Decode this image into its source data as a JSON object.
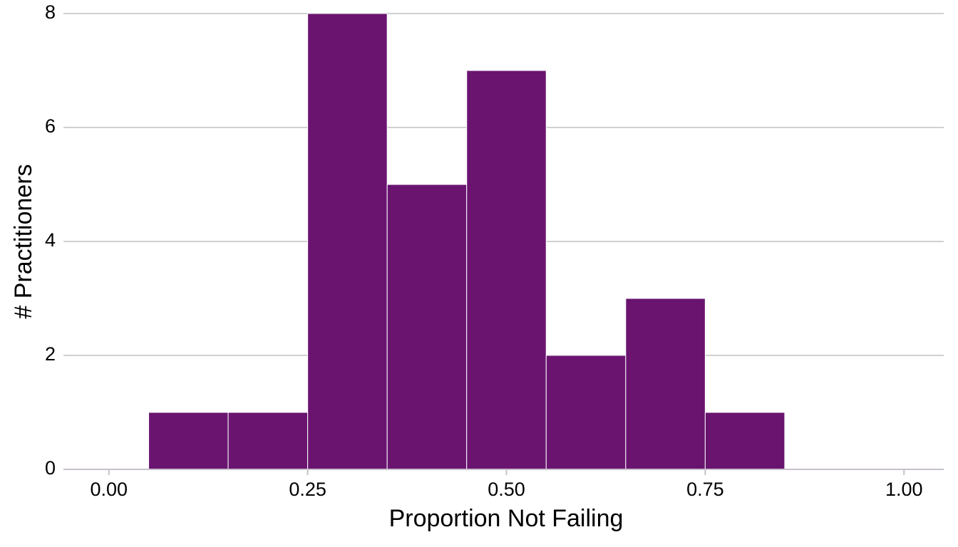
{
  "chart_data": {
    "type": "histogram",
    "x_label": "Proportion Not Failing",
    "y_label": "# Practitioners",
    "bins": [
      0.05,
      0.15,
      0.25,
      0.35,
      0.45,
      0.55,
      0.65,
      0.75,
      0.85
    ],
    "values": [
      1,
      1,
      8,
      5,
      7,
      2,
      3,
      1
    ],
    "color": "#6a1470",
    "xlim": [
      -0.05,
      1.05
    ],
    "xticks": [
      {
        "value": 0,
        "label": "0.00"
      },
      {
        "value": 0.25,
        "label": "0.25"
      },
      {
        "value": 0.5,
        "label": "0.50"
      },
      {
        "value": 0.75,
        "label": "0.75"
      },
      {
        "value": 1,
        "label": "1.00"
      }
    ],
    "ylim": [
      0,
      8
    ],
    "yticks": [
      0,
      2,
      4,
      6,
      8
    ],
    "grid": true
  }
}
